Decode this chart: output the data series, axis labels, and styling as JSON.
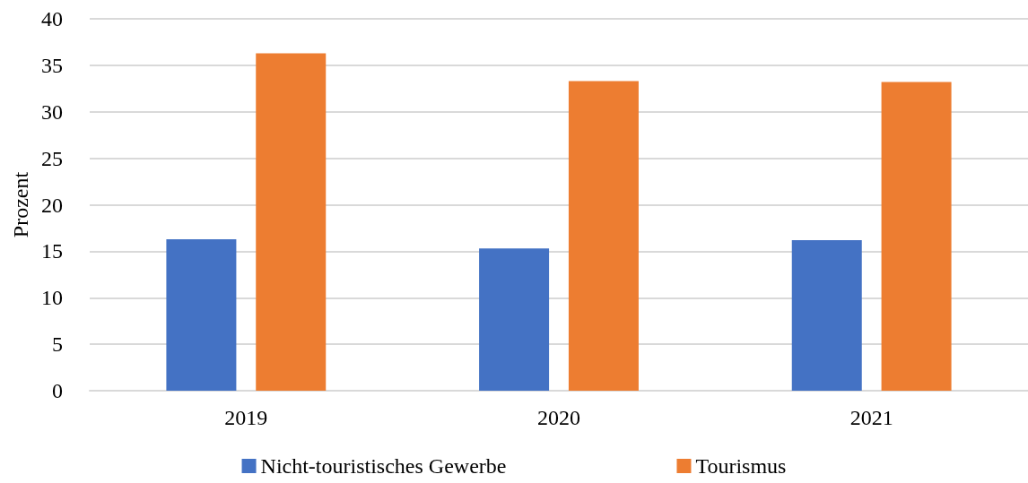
{
  "chart_data": {
    "type": "bar",
    "ylabel": "Prozent",
    "categories": [
      "2019",
      "2020",
      "2021"
    ],
    "series": [
      {
        "name": "Nicht-touristisches Gewerbe",
        "color": "#4472c4",
        "values": [
          16.3,
          15.3,
          16.2
        ]
      },
      {
        "name": "Tourismus",
        "color": "#ed7d31",
        "values": [
          36.3,
          33.3,
          33.2
        ]
      }
    ],
    "ylim": [
      0,
      40
    ],
    "yticks": [
      0,
      5,
      10,
      15,
      20,
      25,
      30,
      35,
      40
    ],
    "grid": "y",
    "legend": "bottom"
  }
}
